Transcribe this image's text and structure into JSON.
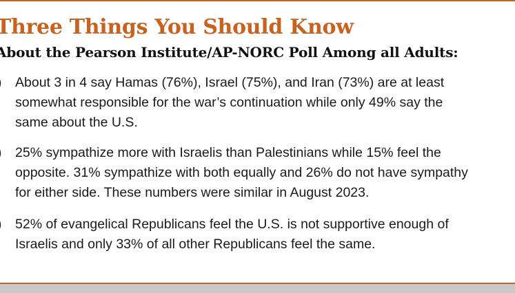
{
  "header": {
    "title": "Three Things You Should Know",
    "subtitle": "About the Pearson Institute/AP-NORC Poll Among all Adults:"
  },
  "items": [
    {
      "marker": ")",
      "lines": [
        "About 3 in 4 say Hamas (76%), Israel (75%), and Iran (73%) are at least",
        "somewhat responsible for the war’s continuation while only 49% say the",
        "same about the U.S."
      ]
    },
    {
      "marker": ")",
      "lines": [
        "25% sympathize more with Israelis than Palestinians while 15% feel the",
        "opposite. 31% sympathize with both equally and 26% do not have sympathy",
        "for either side. These numbers were similar in August 2023."
      ]
    },
    {
      "marker": ")",
      "lines": [
        "52% of evangelical Republicans feel the U.S. is not supportive enough of",
        "Israelis and only 33% of all other Republicans feel the same."
      ]
    }
  ],
  "colors": {
    "accent": "#c8621e",
    "text": "#1a1a1a",
    "footer_band": "#c9c9c9"
  }
}
